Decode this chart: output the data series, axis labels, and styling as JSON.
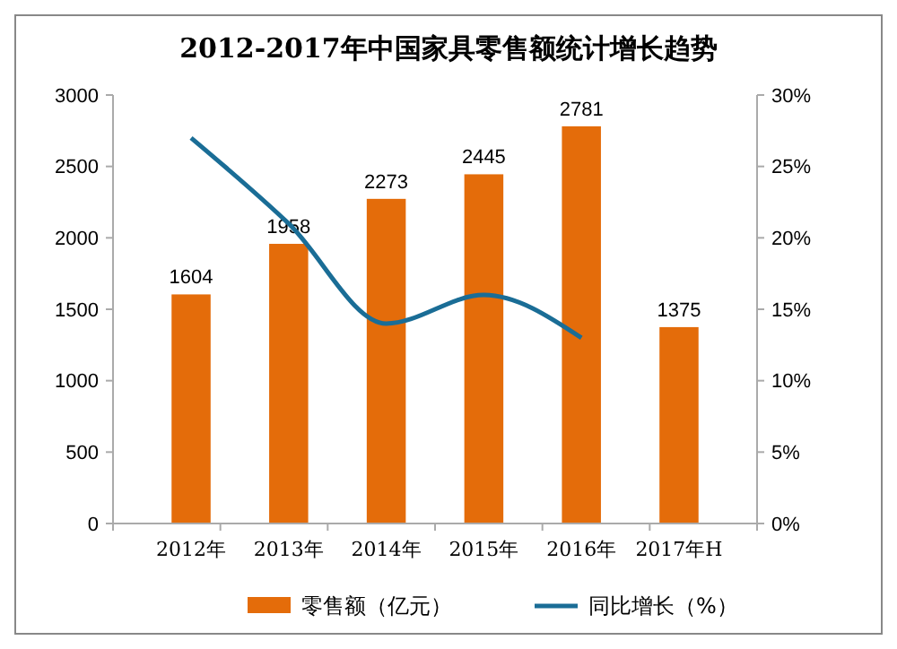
{
  "chart_data": {
    "type": "bar",
    "title": "2012-2017年中国家具零售额统计增长趋势",
    "categories": [
      "2012年",
      "2013年",
      "2014年",
      "2015年",
      "2016年",
      "2017年H"
    ],
    "series": [
      {
        "name": "零售额（亿元）",
        "color": "#e46c0a",
        "values": [
          1604,
          1958,
          2273,
          2445,
          2781,
          1375
        ],
        "value_labels": [
          "1604",
          "1958",
          "2273",
          "2445",
          "2781",
          "1375"
        ]
      },
      {
        "name": "同比增长（%）",
        "type": "line",
        "axis": "y2",
        "color": "#1a6d96",
        "values": [
          27,
          21,
          14,
          16,
          13,
          null
        ]
      }
    ],
    "ylim": [
      0,
      3000
    ],
    "yticks": [
      0,
      500,
      1000,
      1500,
      2000,
      2500,
      3000
    ],
    "y2lim": [
      0,
      30
    ],
    "y2ticks": [
      {
        "value": 0,
        "label": "0%"
      },
      {
        "value": 5,
        "label": "5%"
      },
      {
        "value": 10,
        "label": "10%"
      },
      {
        "value": 15,
        "label": "15%"
      },
      {
        "value": 20,
        "label": "20%"
      },
      {
        "value": 25,
        "label": "25%"
      },
      {
        "value": 30,
        "label": "30%"
      }
    ],
    "grid": false,
    "legend": "bottom"
  }
}
